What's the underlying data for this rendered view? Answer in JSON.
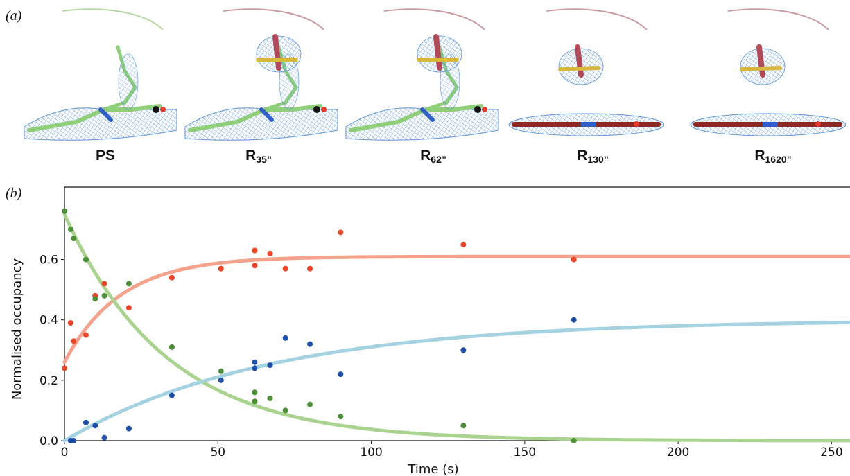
{
  "panel_a": {
    "label": "(a)",
    "structures": [
      {
        "main": "PS",
        "sub": "",
        "has_ligand": false,
        "linear": false
      },
      {
        "main": "R",
        "sub": "35”",
        "has_ligand": true,
        "linear": false
      },
      {
        "main": "R",
        "sub": "62”",
        "has_ligand": true,
        "linear": false
      },
      {
        "main": "R",
        "sub": "130”",
        "has_ligand": true,
        "linear": true
      },
      {
        "main": "R",
        "sub": "1620”",
        "has_ligand": true,
        "linear": true
      }
    ]
  },
  "panel_b": {
    "label": "(b)"
  },
  "chart_data": {
    "type": "scatter",
    "xlabel": "Time (s)",
    "ylabel": "Normalised occupancy",
    "xlim": [
      0,
      256
    ],
    "ylim": [
      0,
      0.84
    ],
    "xticks": [
      0,
      50,
      100,
      150,
      200,
      250
    ],
    "yticks": [
      0.0,
      0.2,
      0.4,
      0.6
    ],
    "grid": false,
    "series": [
      {
        "color": "#e8462a",
        "fit_color": "#f4a28c",
        "x": [
          0,
          2,
          3,
          7,
          10,
          13,
          21,
          35,
          51,
          62,
          62,
          67,
          72,
          80,
          90,
          130,
          166
        ],
        "y": [
          0.24,
          0.39,
          0.33,
          0.35,
          0.48,
          0.52,
          0.44,
          0.54,
          0.57,
          0.63,
          0.58,
          0.62,
          0.57,
          0.57,
          0.69,
          0.65,
          0.6
        ],
        "fit": {
          "start": 0.26,
          "end": 0.61,
          "rate": 0.055
        }
      },
      {
        "color": "#4d8e3a",
        "fit_color": "#a9d38f",
        "x": [
          0,
          2,
          3,
          7,
          10,
          13,
          21,
          35,
          51,
          62,
          62,
          67,
          72,
          80,
          90,
          130,
          166
        ],
        "y": [
          0.76,
          0.7,
          0.67,
          0.6,
          0.47,
          0.48,
          0.52,
          0.31,
          0.23,
          0.16,
          0.13,
          0.14,
          0.1,
          0.12,
          0.08,
          0.05,
          0.0
        ],
        "fit": {
          "start": 0.75,
          "end": 0.0,
          "rate": 0.03
        }
      },
      {
        "color": "#1f4fa6",
        "fit_color": "#a4d2e0",
        "x": [
          2,
          3,
          7,
          10,
          13,
          21,
          35,
          51,
          62,
          62,
          67,
          72,
          80,
          90,
          130,
          166
        ],
        "y": [
          0.0,
          0.0,
          0.06,
          0.05,
          0.01,
          0.04,
          0.15,
          0.2,
          0.26,
          0.24,
          0.25,
          0.34,
          0.32,
          0.22,
          0.3,
          0.4
        ],
        "fit": {
          "start": 0.0,
          "end": 0.4,
          "rate": 0.015
        }
      }
    ]
  }
}
